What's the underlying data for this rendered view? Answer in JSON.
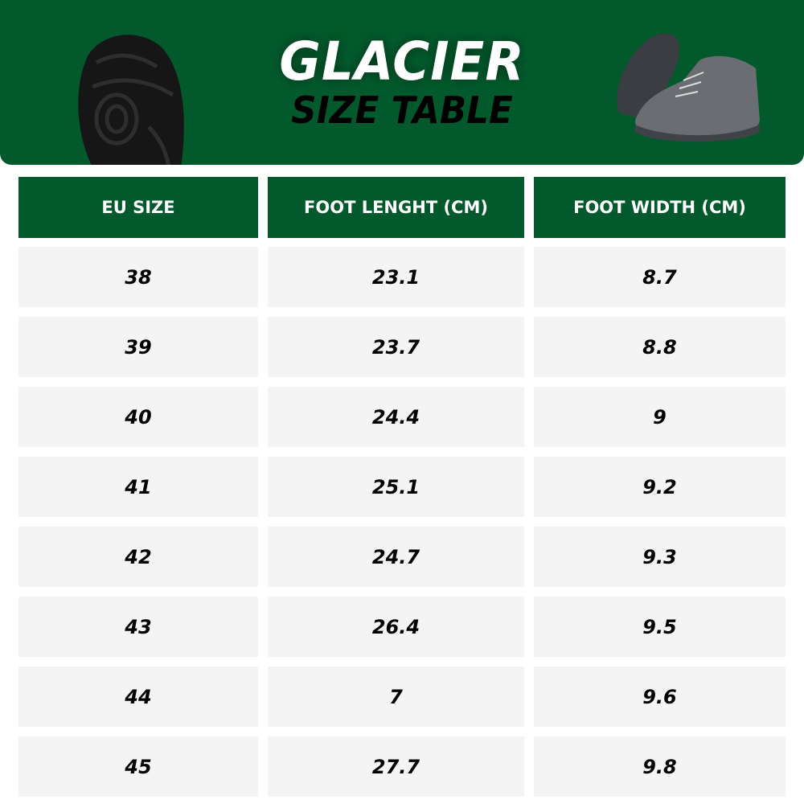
{
  "banner": {
    "title": "GLACIER",
    "subtitle": "SIZE TABLE",
    "brand_color": "#025a2c",
    "images": [
      "shoe-sole-icon",
      "shoe-pair-icon"
    ]
  },
  "table": {
    "headers": [
      "EU SIZE",
      "FOOT LENGHT (CM)",
      "FOOT WIDTH (CM)"
    ],
    "rows": [
      [
        "38",
        "23.1",
        "8.7"
      ],
      [
        "39",
        "23.7",
        "8.8"
      ],
      [
        "40",
        "24.4",
        "9"
      ],
      [
        "41",
        "25.1",
        "9.2"
      ],
      [
        "42",
        "24.7",
        "9.3"
      ],
      [
        "43",
        "26.4",
        "9.5"
      ],
      [
        "44",
        "7",
        "9.6"
      ],
      [
        "45",
        "27.7",
        "9.8"
      ]
    ]
  }
}
